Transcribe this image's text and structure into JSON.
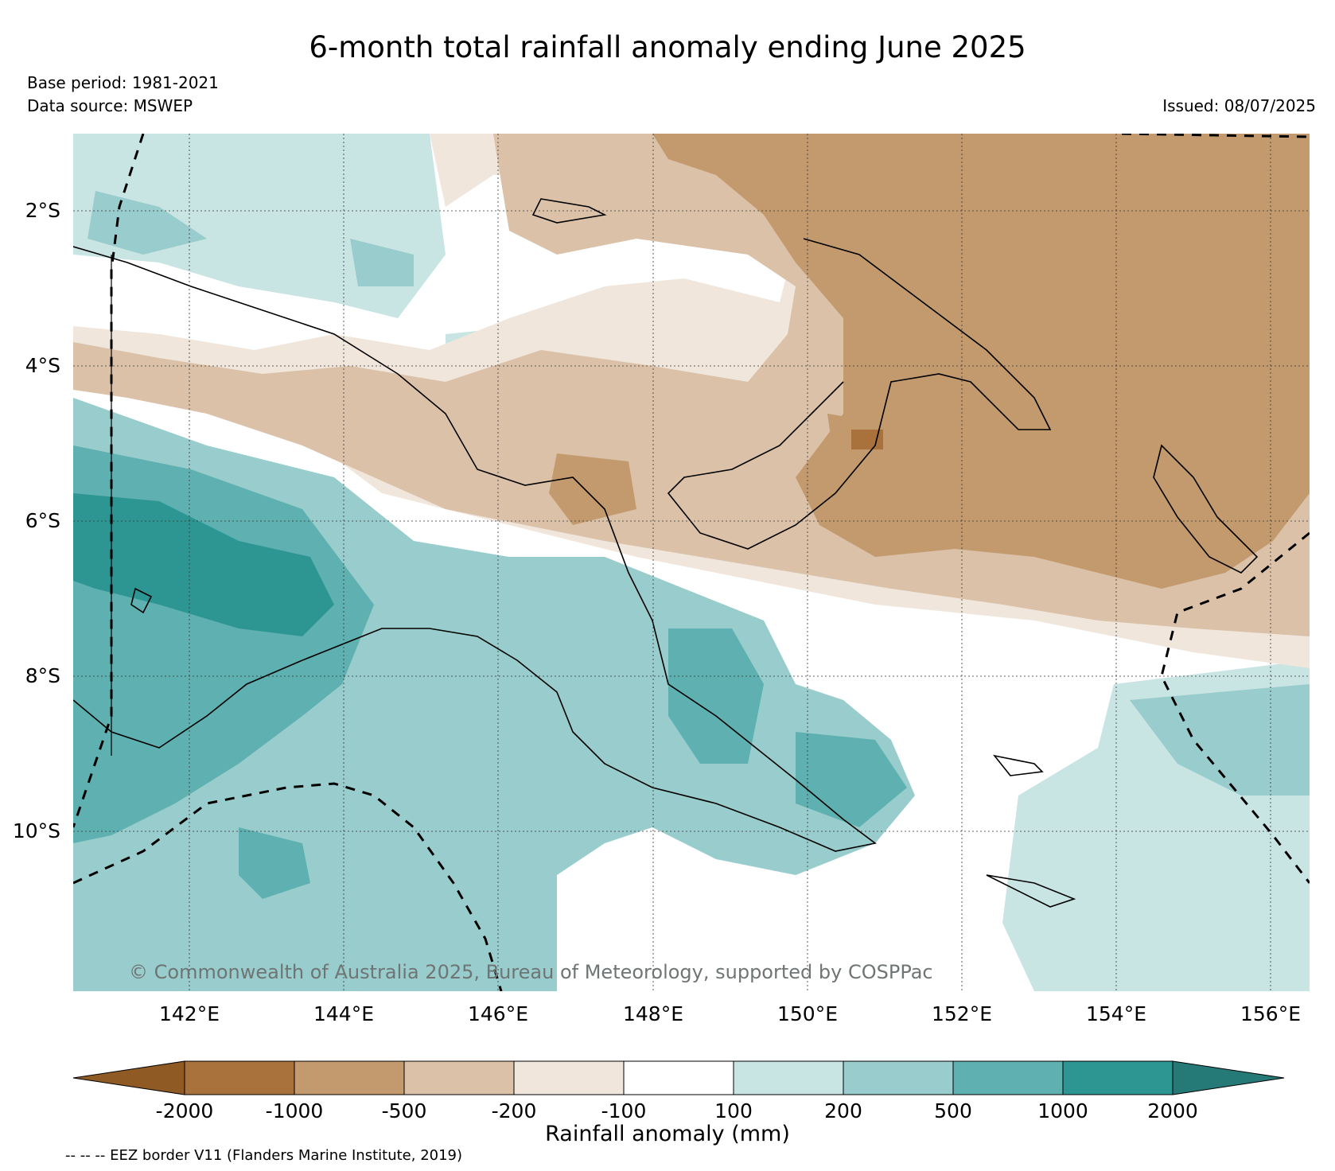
{
  "title": "6-month total rainfall anomaly ending June 2025",
  "base_period": "Base period: 1981-2021",
  "data_source": "Data source: MSWEP",
  "issued": "Issued: 08/07/2025",
  "copyright": "© Commonwealth of Australia 2025, Bureau of Meteorology, supported by COSPPac",
  "eez_note": "-- -- -- EEZ border V11 (Flanders Marine Institute, 2019)",
  "map": {
    "lat_labels": [
      "2°S",
      "4°S",
      "6°S",
      "8°S",
      "10°S"
    ],
    "lon_labels": [
      "142°E",
      "144°E",
      "146°E",
      "148°E",
      "150°E",
      "152°E",
      "154°E",
      "156°E"
    ],
    "lat_range": [
      -12.0,
      -1.0
    ],
    "lon_range": [
      140.5,
      156.5
    ],
    "gridlines": true
  },
  "colorbar": {
    "label": "Rainfall anomaly (mm)",
    "ticks": [
      "-2000",
      "-1000",
      "-500",
      "-200",
      "-100",
      "100",
      "200",
      "500",
      "1000",
      "2000"
    ],
    "colors": [
      "#8f5a24",
      "#a9713c",
      "#c29a6d",
      "#dbc1a8",
      "#f0e6dc",
      "#ffffff",
      "#c8e4e3",
      "#99cccc",
      "#5fb0b0",
      "#2e9692",
      "#257a77"
    ]
  },
  "colors": {
    "dry_strong": "#c29a6d",
    "dry_moderate": "#dbc1a8",
    "dry_light": "#f0e6dc",
    "wet_light": "#c8e4e3",
    "wet_moderate": "#99cccc",
    "wet_strong": "#5fb0b0",
    "wet_very_strong": "#2e9692"
  }
}
